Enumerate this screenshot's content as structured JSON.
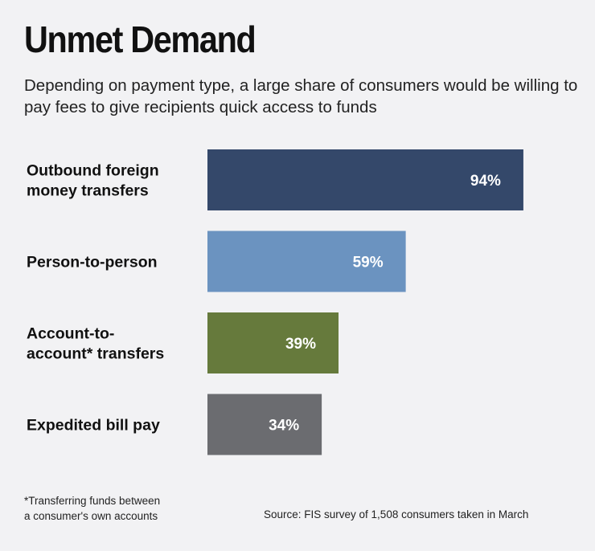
{
  "chart_data": {
    "type": "bar",
    "orientation": "horizontal",
    "title": "Unmet Demand",
    "subtitle": "Depending on payment type, a large share of consumers would be willing to pay fees to give recipients quick access to funds",
    "categories": [
      [
        "Outbound foreign",
        "money transfers"
      ],
      [
        "Person-to-person"
      ],
      [
        "Account-to-",
        "account* transfers"
      ],
      [
        "Expedited bill pay"
      ]
    ],
    "values": [
      94,
      59,
      39,
      34
    ],
    "value_labels": [
      "94%",
      "59%",
      "39%",
      "34%"
    ],
    "colors": [
      "#34486a",
      "#6b93c0",
      "#667a3c",
      "#6b6c70"
    ],
    "xlim": [
      0,
      100
    ],
    "grid": false,
    "legend": "none"
  },
  "footnote": "*Transferring funds between\na consumer's own accounts",
  "source": "Source: FIS survey of 1,508 consumers taken in March"
}
